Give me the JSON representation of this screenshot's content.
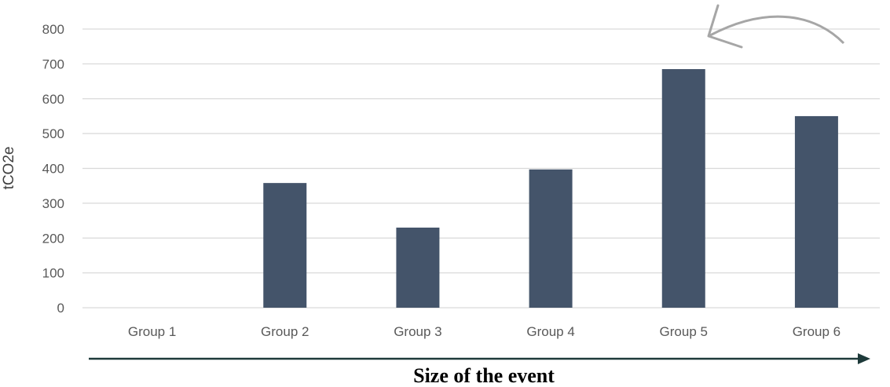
{
  "chart_data": {
    "type": "bar",
    "categories": [
      "Group 1",
      "Group 2",
      "Group 3",
      "Group 4",
      "Group 5",
      "Group 6"
    ],
    "values": [
      0,
      358,
      230,
      397,
      685,
      550
    ],
    "ylabel": "tCO2e",
    "xlabel": "Size of the event",
    "ylim": [
      0,
      800
    ],
    "yticks": [
      0,
      100,
      200,
      300,
      400,
      500,
      600,
      700,
      800
    ],
    "grid": true,
    "legend": "none"
  },
  "colors": {
    "bar": "#44546a",
    "grid": "#d9d9d9",
    "size_arrow": "#1e3a3a",
    "curved_arrow": "#a6a6a6"
  },
  "icons": {
    "size_arrow": "right-arrow-icon",
    "curved_arrow": "curved-left-arrow-icon"
  }
}
